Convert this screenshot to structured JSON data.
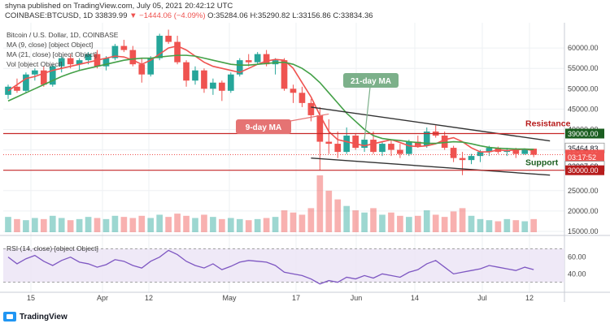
{
  "header": {
    "publisher": "shyna published on TradingView.com, July 05, 2021 20:42:12 UTC",
    "symbol": "COINBASE:BTCUSD, 1D",
    "last": "33839.99",
    "change": "▼ −1444.06 (−4.09%)",
    "ohlc": "O:35284.06 H:35290.82 L:33156.86 C:33834.36"
  },
  "legend": {
    "title": "Bitcoin / U.S. Dollar, 1D, COINBASE",
    "ma9": "MA (9, close) [object Object]",
    "ma21": "MA (21, close) [object Object]",
    "vol": "Vol [object Object]"
  },
  "footer": {
    "brand": "TradingView"
  },
  "colors": {
    "up": "#26a69a",
    "down": "#ef5350",
    "ma9": "#ef5350",
    "ma21": "#43a047",
    "rsi": "#7e57c2",
    "channel": "#333333",
    "resistance": "#c62828",
    "support": "#c62828",
    "current": "#ef5350"
  },
  "chart_data": [
    {
      "type": "candlestick",
      "title": "Bitcoin / U.S. Dollar, 1D, COINBASE",
      "ylim": [
        15000,
        65000
      ],
      "yticks": [
        60000,
        55000,
        50000,
        45000,
        40000,
        35000,
        30000,
        25000,
        20000,
        15000
      ],
      "ytick_labels": [
        "60000.00",
        "55000.00",
        "50000.00",
        "45000.00",
        "40000.00",
        "35000.00",
        "30000.00",
        "25000.00",
        "20000.00",
        "15000.00"
      ],
      "x_tick_labels": [
        "15",
        "Apr",
        "12",
        "May",
        "17",
        "Jun",
        "14",
        "Jul",
        "12"
      ],
      "price_labels": [
        {
          "value": 39000,
          "text": "39000.00",
          "color": "#1b5e20"
        },
        {
          "value": 35464.83,
          "text": "35464.83",
          "color": ""
        },
        {
          "value": 33834.36,
          "text": "33834.36",
          "color": "#ef5350"
        },
        {
          "value": 32997.69,
          "text": "03:17:52",
          "color": "#ef5350"
        },
        {
          "value": 32997.69,
          "text": "32997.69",
          "color": ""
        },
        {
          "value": 30000,
          "text": "30000.00",
          "color": "#b71c1c"
        }
      ],
      "annotations": {
        "ma21_label": "21-day MA",
        "ma9_label": "9-day MA",
        "resistance": "Resistance",
        "support": "Support"
      },
      "series": [
        {
          "name": "MA (9, close)",
          "color": "#ef5350",
          "values": [
            49500,
            51000,
            52500,
            53000,
            53800,
            54500,
            55000,
            55500,
            56000,
            56500,
            57000,
            57500,
            58000,
            57800,
            57000,
            56000,
            57000,
            58500,
            60000,
            60500,
            59500,
            58000,
            56500,
            55500,
            55000,
            54500,
            54000,
            55000,
            56000,
            56800,
            57200,
            57000,
            55000,
            51500,
            48000,
            43500,
            39500,
            37500,
            37000,
            36500,
            36000,
            36500,
            37000,
            37500,
            36800,
            36000,
            35800,
            36000,
            36500,
            37500,
            38000,
            37000,
            35500,
            34500,
            34500,
            35000,
            34800,
            35000,
            35200,
            34800
          ]
        },
        {
          "name": "MA (21, close)",
          "color": "#43a047",
          "values": [
            47000,
            48000,
            49000,
            50000,
            51000,
            52000,
            53000,
            53800,
            54500,
            55000,
            55500,
            56000,
            56500,
            57000,
            57300,
            57500,
            57500,
            57800,
            58000,
            58200,
            58200,
            58000,
            57500,
            57000,
            56500,
            56000,
            55800,
            55800,
            56000,
            56200,
            56400,
            56500,
            56000,
            55000,
            53500,
            51500,
            49000,
            46500,
            44000,
            42000,
            40000,
            38500,
            37800,
            37500,
            37300,
            37000,
            36800,
            36600,
            36600,
            36800,
            37000,
            36900,
            36500,
            36000,
            35600,
            35400,
            35300,
            35200,
            35200,
            35100
          ]
        }
      ],
      "candles": [
        [
          48500,
          51000,
          47500,
          50500
        ],
        [
          50500,
          52500,
          49000,
          49500
        ],
        [
          49500,
          54000,
          49000,
          53500
        ],
        [
          53500,
          55000,
          52000,
          54500
        ],
        [
          54500,
          55500,
          50500,
          51000
        ],
        [
          51000,
          56000,
          50500,
          55500
        ],
        [
          55500,
          58000,
          54000,
          57500
        ],
        [
          57500,
          58500,
          55000,
          56000
        ],
        [
          56000,
          57500,
          54500,
          57000
        ],
        [
          57000,
          59000,
          56000,
          58500
        ],
        [
          58500,
          59500,
          55000,
          55500
        ],
        [
          55500,
          58000,
          54500,
          57500
        ],
        [
          57500,
          61000,
          57000,
          60500
        ],
        [
          60500,
          62000,
          59000,
          59500
        ],
        [
          59500,
          60500,
          55500,
          56000
        ],
        [
          56000,
          57500,
          51500,
          53500
        ],
        [
          53500,
          58000,
          53000,
          57500
        ],
        [
          57500,
          63500,
          57000,
          63000
        ],
        [
          63000,
          64500,
          61000,
          61500
        ],
        [
          61500,
          63000,
          56000,
          56500
        ],
        [
          56500,
          57000,
          50500,
          52000
        ],
        [
          52000,
          55500,
          51000,
          54500
        ],
        [
          54500,
          55000,
          49000,
          50000
        ],
        [
          50000,
          52500,
          48500,
          51500
        ],
        [
          51500,
          52000,
          47000,
          49500
        ],
        [
          49500,
          54000,
          49000,
          53500
        ],
        [
          53500,
          57500,
          53000,
          57000
        ],
        [
          57000,
          58500,
          55500,
          56500
        ],
        [
          56500,
          59000,
          56000,
          58500
        ],
        [
          58500,
          59500,
          55500,
          56000
        ],
        [
          56000,
          57500,
          53500,
          57000
        ],
        [
          57000,
          57500,
          49500,
          50000
        ],
        [
          50000,
          51000,
          46500,
          49000
        ],
        [
          49000,
          50500,
          45500,
          46500
        ],
        [
          46500,
          47500,
          42000,
          43500
        ],
        [
          43500,
          45500,
          30000,
          37000
        ],
        [
          37000,
          42500,
          34000,
          36500
        ],
        [
          36500,
          39500,
          33000,
          34500
        ],
        [
          34500,
          40500,
          34000,
          38500
        ],
        [
          38500,
          39000,
          35000,
          35500
        ],
        [
          35500,
          38000,
          34500,
          37500
        ],
        [
          37500,
          39500,
          34000,
          34500
        ],
        [
          34500,
          37000,
          33500,
          36500
        ],
        [
          36500,
          37500,
          33500,
          35000
        ],
        [
          35000,
          36500,
          33000,
          34000
        ],
        [
          34000,
          37500,
          33500,
          37000
        ],
        [
          37000,
          38500,
          35500,
          36000
        ],
        [
          36000,
          40500,
          35500,
          39500
        ],
        [
          39500,
          41000,
          38000,
          38500
        ],
        [
          38500,
          39500,
          35000,
          35500
        ],
        [
          35500,
          36000,
          32000,
          33000
        ],
        [
          33000,
          34500,
          28800,
          32500
        ],
        [
          32500,
          34000,
          31500,
          33500
        ],
        [
          33500,
          35000,
          32000,
          34500
        ],
        [
          34500,
          36000,
          33500,
          35500
        ],
        [
          35500,
          35800,
          34000,
          34500
        ],
        [
          34500,
          35500,
          33500,
          35000
        ],
        [
          35000,
          35500,
          33000,
          34000
        ],
        [
          34000,
          35300,
          33800,
          35300
        ],
        [
          35300,
          35300,
          33200,
          33800
        ]
      ],
      "volume": [
        14,
        12,
        11,
        13,
        12,
        15,
        13,
        11,
        12,
        14,
        13,
        12,
        15,
        14,
        13,
        15,
        13,
        16,
        14,
        17,
        15,
        13,
        16,
        14,
        12,
        13,
        12,
        11,
        12,
        13,
        14,
        20,
        18,
        16,
        22,
        52,
        38,
        30,
        24,
        20,
        18,
        22,
        16,
        18,
        15,
        14,
        15,
        20,
        16,
        14,
        19,
        22,
        15,
        12,
        11,
        10,
        12,
        11,
        10,
        12
      ],
      "rsi": {
        "title": "RSI (14, close) [object Object]",
        "ylim": [
          20,
          80
        ],
        "yticks": [
          60,
          40
        ],
        "ytick_labels": [
          "60.00",
          "40.00"
        ],
        "band": [
          30,
          70
        ],
        "values": [
          60,
          52,
          58,
          62,
          55,
          50,
          56,
          60,
          54,
          52,
          48,
          51,
          57,
          55,
          50,
          47,
          55,
          60,
          68,
          63,
          55,
          50,
          47,
          52,
          45,
          49,
          54,
          56,
          55,
          54,
          50,
          42,
          40,
          38,
          34,
          28,
          32,
          30,
          36,
          34,
          38,
          35,
          40,
          38,
          36,
          42,
          45,
          52,
          56,
          48,
          40,
          42,
          44,
          46,
          50,
          48,
          46,
          44,
          48,
          45
        ]
      }
    }
  ]
}
